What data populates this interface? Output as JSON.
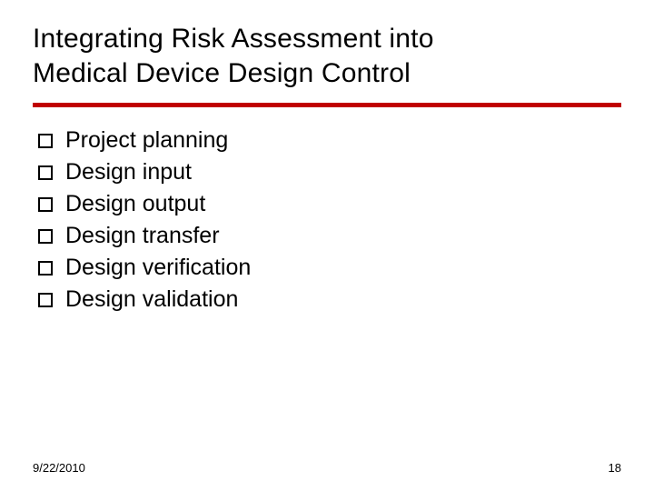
{
  "slide": {
    "title_line1": "Integrating Risk Assessment into",
    "title_line2": "Medical Device Design Control",
    "accent_color": "#c00000",
    "title_color": "#000000",
    "body_color": "#000000",
    "title_fontsize": 30,
    "body_fontsize": 25,
    "footer_fontsize": 13,
    "background_color": "#ffffff"
  },
  "bullets": {
    "items": [
      {
        "label": "Project planning"
      },
      {
        "label": "Design input"
      },
      {
        "label": "Design output"
      },
      {
        "label": "Design transfer"
      },
      {
        "label": "Design verification"
      },
      {
        "label": "Design validation"
      }
    ]
  },
  "footer": {
    "date": "9/22/2010",
    "page_number": "18"
  }
}
